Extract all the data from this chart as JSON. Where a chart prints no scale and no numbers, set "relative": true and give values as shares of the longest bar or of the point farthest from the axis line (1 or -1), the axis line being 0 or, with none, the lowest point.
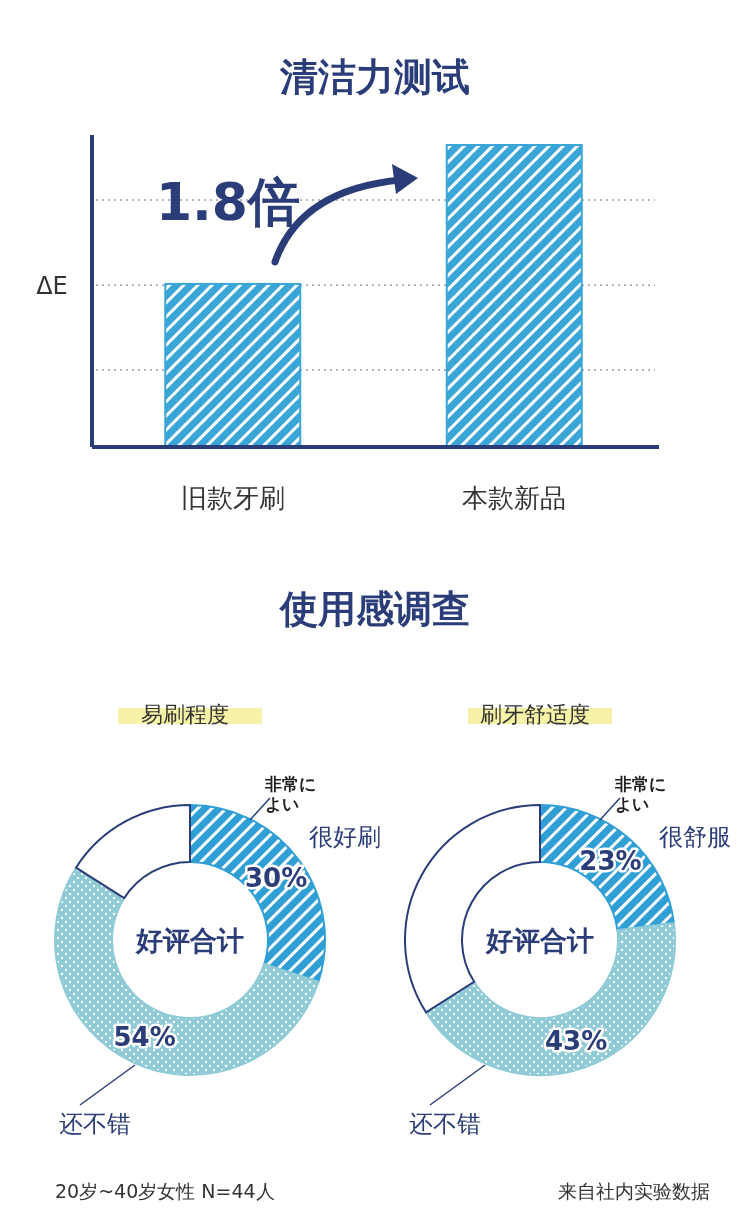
{
  "chart_data": [
    {
      "type": "bar",
      "title": "清洁力测试",
      "ylabel": "ΔE",
      "relative": true,
      "categories": [
        "旧款牙刷",
        "本款新品"
      ],
      "values": [
        0.54,
        1
      ],
      "color": "#3aa6d8",
      "ref_lines": [
        {
          "axis": "y",
          "value": 0.255,
          "color": "#9aa0b4",
          "line_style": "dotted"
        },
        {
          "axis": "y",
          "value": 0.536,
          "color": "#9aa0b4",
          "line_style": "dotted"
        },
        {
          "axis": "y",
          "value": 0.818,
          "color": "#9aa0b4",
          "line_style": "dotted"
        }
      ],
      "annotations": [
        "1.8倍"
      ]
    },
    {
      "type": "donut",
      "subtitle": "使用感调查",
      "title": "易刷程度",
      "categories": [
        "很好刷",
        "还不错",
        null
      ],
      "values": [
        30,
        54,
        16
      ],
      "colors": [
        "#2f9fd6",
        "#8fcbd6",
        "#ffffff"
      ],
      "value_labels": [
        "30%",
        "54%",
        null
      ],
      "annotations": [
        "非常に",
        "よい",
        "好评合计",
        "20岁~40岁女性  N=44人"
      ]
    },
    {
      "type": "donut",
      "title": "刷牙舒适度",
      "categories": [
        "很舒服",
        "还不错",
        null
      ],
      "values": [
        23,
        43,
        34
      ],
      "colors": [
        "#2f9fd6",
        "#8fcbd6",
        "#ffffff"
      ],
      "value_labels": [
        "23%",
        "43%",
        null
      ],
      "annotations": [
        "非常に",
        "よい",
        "好评合计",
        "来自社内实验数据"
      ]
    }
  ]
}
